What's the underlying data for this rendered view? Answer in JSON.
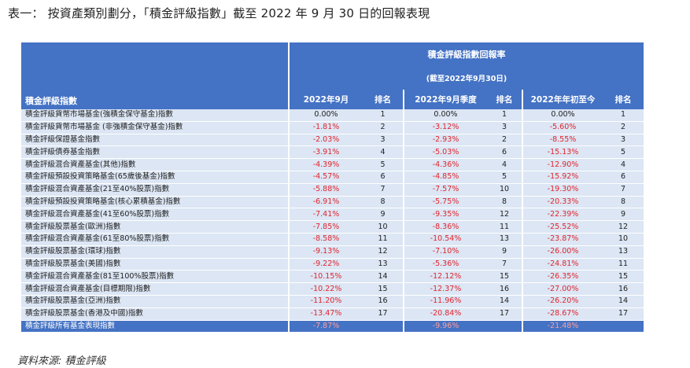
{
  "title": "表一： 按資產類別劃分，「積金評級指數」截至 2022 年 9 月 30 日的回報表現",
  "table": {
    "group_header": "積金評級指數回報率",
    "sub_header": "(截至2022年9月30日)",
    "columns": [
      "積金評級指數",
      "2022年9月",
      "排名",
      "2022年9月季度",
      "排名",
      "2022年年初至今",
      "排名"
    ],
    "rows": [
      [
        "積金評級貨幣市場基金(強積金保守基金)指數",
        "0.00%",
        "1",
        "0.00%",
        "1",
        "0.00%",
        "1"
      ],
      [
        "積金評級貨幣市場基金 (非強積金保守基金)指數",
        "-1.81%",
        "2",
        "-3.12%",
        "3",
        "-5.60%",
        "2"
      ],
      [
        "積金評級保證基金指數",
        "-2.03%",
        "3",
        "-2.93%",
        "2",
        "-8.55%",
        "3"
      ],
      [
        "積金評級債券基金指數",
        "-3.91%",
        "4",
        "-5.03%",
        "6",
        "-15.13%",
        "5"
      ],
      [
        "積金評級混合資產基金(其他)指數",
        "-4.39%",
        "5",
        "-4.36%",
        "4",
        "-12.90%",
        "4"
      ],
      [
        "積金評級預設投資策略基金(65歲後基金)指數",
        "-4.57%",
        "6",
        "-4.85%",
        "5",
        "-15.92%",
        "6"
      ],
      [
        "積金評級混合資產基金(21至40%股票)指數",
        "-5.88%",
        "7",
        "-7.57%",
        "10",
        "-19.30%",
        "7"
      ],
      [
        "積金評級預設投資策略基金(核心累積基金)指數",
        "-6.91%",
        "8",
        "-5.75%",
        "8",
        "-20.33%",
        "8"
      ],
      [
        "積金評級混合資產基金(41至60%股票)指數",
        "-7.41%",
        "9",
        "-9.35%",
        "12",
        "-22.39%",
        "9"
      ],
      [
        "積金評級股票基金(歐洲)指數",
        "-7.85%",
        "10",
        "-8.36%",
        "11",
        "-25.52%",
        "12"
      ],
      [
        "積金評級混合資產基金(61至80%股票)指數",
        "-8.58%",
        "11",
        "-10.54%",
        "13",
        "-23.87%",
        "10"
      ],
      [
        "積金評級股票基金(環球)指數",
        "-9.13%",
        "12",
        "-7.10%",
        "9",
        "-26.00%",
        "13"
      ],
      [
        "積金評級股票基金(美國)指數",
        "-9.22%",
        "13",
        "-5.36%",
        "7",
        "-24.81%",
        "11"
      ],
      [
        "積金評級混合資產基金(81至100%股票)指數",
        "-10.15%",
        "14",
        "-12.12%",
        "15",
        "-26.35%",
        "15"
      ],
      [
        "積金評級混合資產基金(目標期限)指數",
        "-10.22%",
        "15",
        "-12.37%",
        "16",
        "-27.00%",
        "16"
      ],
      [
        "積金評級股票基金(亞洲)指數",
        "-11.20%",
        "16",
        "-11.96%",
        "14",
        "-26.20%",
        "14"
      ],
      [
        "積金評級股票基金(香港及中國)指數",
        "-13.47%",
        "17",
        "-20.84%",
        "17",
        "-28.67%",
        "17"
      ]
    ],
    "total_row": [
      "積金評級所有基金表現指數",
      "-7.87%",
      "",
      "-9.96%",
      "",
      "-21.48%",
      ""
    ]
  },
  "source": "資料來源:   積金評級",
  "colors": {
    "header_bg": "#4472c4",
    "row_bg": "#dce6f4",
    "negative": "#e0252f"
  }
}
